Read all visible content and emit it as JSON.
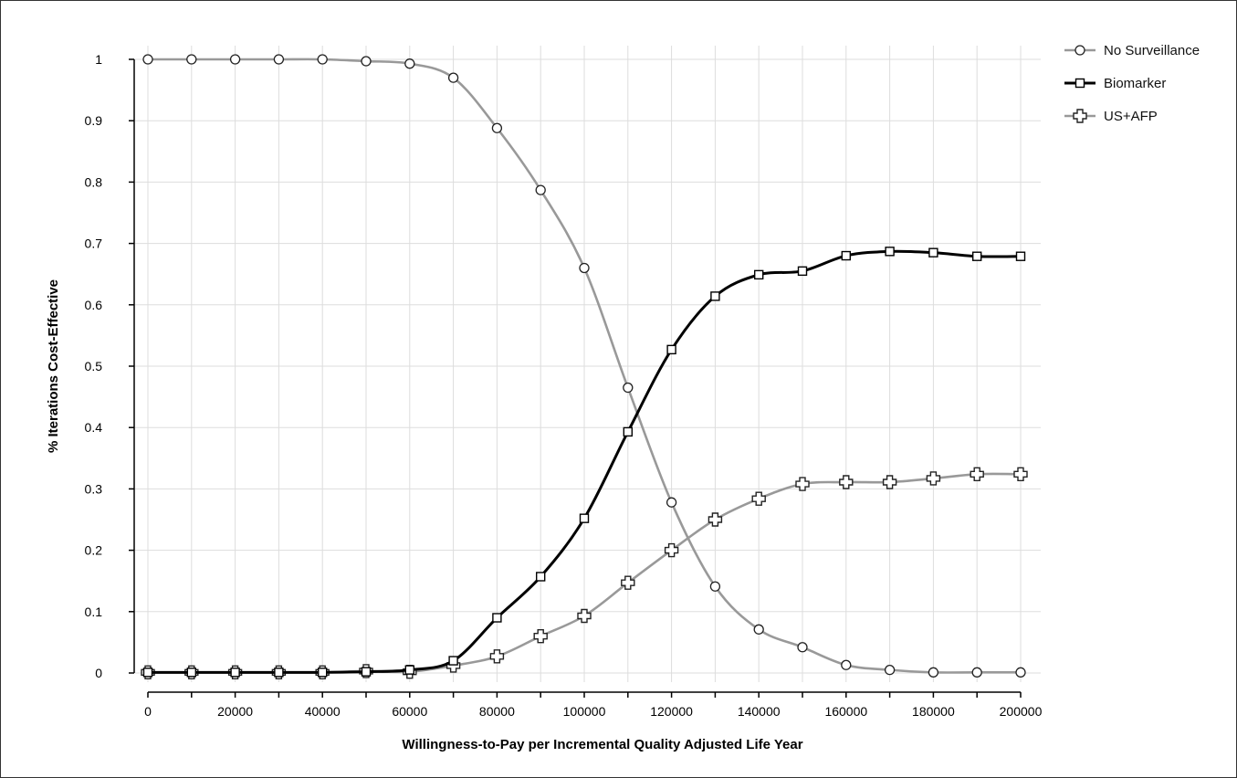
{
  "chart_data": {
    "type": "line",
    "title": "",
    "xlabel": "Willingness-to-Pay per Incremental Quality Adjusted Life Year",
    "ylabel": "% Iterations Cost-Effective",
    "xlim": [
      0,
      200000
    ],
    "ylim": [
      0,
      1
    ],
    "grid": true,
    "legend_position": "top-right",
    "x": [
      0,
      10000,
      20000,
      30000,
      40000,
      50000,
      60000,
      70000,
      80000,
      90000,
      100000,
      110000,
      120000,
      130000,
      140000,
      150000,
      160000,
      170000,
      180000,
      190000,
      200000
    ],
    "x_ticks": [
      "0",
      "20000",
      "40000",
      "60000",
      "80000",
      "100000",
      "120000",
      "140000",
      "160000",
      "180000",
      "200000"
    ],
    "y_ticks": [
      "0",
      "0.1",
      "0.2",
      "0.3",
      "0.4",
      "0.5",
      "0.6",
      "0.7",
      "0.8",
      "0.9",
      "1"
    ],
    "series": [
      {
        "name": "No Surveillance",
        "color": "#999999",
        "marker": "circle",
        "values": [
          1.0,
          1.0,
          1.0,
          1.0,
          1.0,
          0.997,
          0.993,
          0.97,
          0.888,
          0.787,
          0.66,
          0.465,
          0.278,
          0.141,
          0.071,
          0.042,
          0.013,
          0.005,
          0.001,
          0.001,
          0.001
        ]
      },
      {
        "name": "Biomarker",
        "color": "#000000",
        "marker": "square",
        "values": [
          0.001,
          0.001,
          0.001,
          0.001,
          0.001,
          0.002,
          0.005,
          0.02,
          0.09,
          0.157,
          0.252,
          0.393,
          0.527,
          0.614,
          0.649,
          0.655,
          0.68,
          0.687,
          0.685,
          0.679,
          0.679
        ]
      },
      {
        "name": "US+AFP",
        "color": "#999999",
        "marker": "cross",
        "values": [
          0.001,
          0.001,
          0.001,
          0.001,
          0.001,
          0.003,
          0.002,
          0.012,
          0.027,
          0.06,
          0.093,
          0.147,
          0.2,
          0.25,
          0.284,
          0.308,
          0.311,
          0.311,
          0.317,
          0.324,
          0.324
        ]
      }
    ]
  }
}
